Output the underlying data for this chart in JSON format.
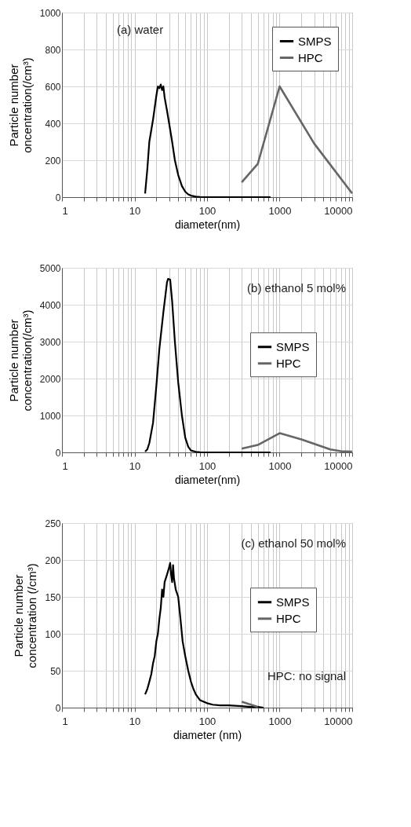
{
  "chart_data": [
    {
      "type": "line",
      "ylabel": "Particle number\noncentration(/cm³)",
      "xlabel": "diameter(nm)",
      "annotations": [
        "(a) water"
      ],
      "log": "x",
      "grid": true,
      "legend": "top right",
      "xlim": [
        1,
        10000
      ],
      "ylim": [
        0,
        1000
      ],
      "yticks": [
        0,
        200,
        400,
        600,
        800,
        1000
      ],
      "xticks": [
        1,
        {
          "value": 2,
          "label": null
        },
        {
          "value": 3,
          "label": null
        },
        {
          "value": 4,
          "label": null
        },
        {
          "value": 5,
          "label": null
        },
        {
          "value": 6,
          "label": null
        },
        {
          "value": 7,
          "label": null
        },
        {
          "value": 8,
          "label": null
        },
        {
          "value": 9,
          "label": null
        },
        10,
        {
          "value": 20,
          "label": null
        },
        {
          "value": 30,
          "label": null
        },
        {
          "value": 40,
          "label": null
        },
        {
          "value": 50,
          "label": null
        },
        {
          "value": 60,
          "label": null
        },
        {
          "value": 70,
          "label": null
        },
        {
          "value": 80,
          "label": null
        },
        {
          "value": 90,
          "label": null
        },
        100,
        {
          "value": 200,
          "label": null
        },
        {
          "value": 300,
          "label": null
        },
        {
          "value": 400,
          "label": null
        },
        {
          "value": 500,
          "label": null
        },
        {
          "value": 600,
          "label": null
        },
        {
          "value": 700,
          "label": null
        },
        {
          "value": 800,
          "label": null
        },
        {
          "value": 900,
          "label": null
        },
        1000,
        {
          "value": 2000,
          "label": null
        },
        {
          "value": 3000,
          "label": null
        },
        {
          "value": 4000,
          "label": null
        },
        {
          "value": 5000,
          "label": null
        },
        {
          "value": 6000,
          "label": null
        },
        {
          "value": 7000,
          "label": null
        },
        {
          "value": 8000,
          "label": null
        },
        {
          "value": 9000,
          "label": null
        },
        10000
      ],
      "series": [
        {
          "name": "SMPS",
          "color": "#000000",
          "x": [
            14,
            15,
            16,
            18,
            20,
            21,
            22,
            23,
            24,
            25,
            26,
            28,
            30,
            33,
            36,
            40,
            45,
            50,
            55,
            60,
            70,
            80,
            100,
            200,
            500,
            750
          ],
          "values": [
            20,
            150,
            300,
            420,
            550,
            600,
            590,
            610,
            580,
            600,
            540,
            470,
            400,
            300,
            200,
            120,
            60,
            30,
            15,
            8,
            3,
            1,
            0,
            0,
            0,
            0
          ]
        },
        {
          "name": "HPC",
          "color": "#666666",
          "x": [
            300,
            500,
            1000,
            3000,
            10000
          ],
          "values": [
            80,
            180,
            600,
            290,
            20
          ]
        }
      ]
    },
    {
      "type": "line",
      "ylabel": "Particle number\nconcentration(/cm³)",
      "xlabel": "diameter(nm)",
      "annotations": [
        "(b) ethanol 5 mol%"
      ],
      "log": "x",
      "grid": true,
      "legend": "right",
      "xlim": [
        1,
        10000
      ],
      "ylim": [
        0,
        5000
      ],
      "yticks": [
        0,
        1000,
        2000,
        3000,
        4000,
        5000
      ],
      "xticks": [
        1,
        {
          "value": 2,
          "label": null
        },
        {
          "value": 3,
          "label": null
        },
        {
          "value": 4,
          "label": null
        },
        {
          "value": 5,
          "label": null
        },
        {
          "value": 6,
          "label": null
        },
        {
          "value": 7,
          "label": null
        },
        {
          "value": 8,
          "label": null
        },
        {
          "value": 9,
          "label": null
        },
        10,
        {
          "value": 20,
          "label": null
        },
        {
          "value": 30,
          "label": null
        },
        {
          "value": 40,
          "label": null
        },
        {
          "value": 50,
          "label": null
        },
        {
          "value": 60,
          "label": null
        },
        {
          "value": 70,
          "label": null
        },
        {
          "value": 80,
          "label": null
        },
        {
          "value": 90,
          "label": null
        },
        100,
        {
          "value": 200,
          "label": null
        },
        {
          "value": 300,
          "label": null
        },
        {
          "value": 400,
          "label": null
        },
        {
          "value": 500,
          "label": null
        },
        {
          "value": 600,
          "label": null
        },
        {
          "value": 700,
          "label": null
        },
        {
          "value": 800,
          "label": null
        },
        {
          "value": 900,
          "label": null
        },
        1000,
        {
          "value": 2000,
          "label": null
        },
        {
          "value": 3000,
          "label": null
        },
        {
          "value": 4000,
          "label": null
        },
        {
          "value": 5000,
          "label": null
        },
        {
          "value": 6000,
          "label": null
        },
        {
          "value": 7000,
          "label": null
        },
        {
          "value": 8000,
          "label": null
        },
        {
          "value": 9000,
          "label": null
        },
        10000
      ],
      "series": [
        {
          "name": "SMPS",
          "color": "#000000",
          "x": [
            14,
            15,
            16,
            18,
            20,
            22,
            25,
            28,
            29,
            31,
            33,
            36,
            40,
            45,
            50,
            55,
            60,
            70,
            80,
            100,
            300,
            750
          ],
          "values": [
            20,
            80,
            250,
            800,
            1800,
            2800,
            3800,
            4600,
            4700,
            4680,
            4100,
            3000,
            1900,
            1000,
            400,
            150,
            50,
            15,
            5,
            0,
            0,
            0
          ]
        },
        {
          "name": "HPC",
          "color": "#666666",
          "x": [
            300,
            500,
            1000,
            2000,
            5000,
            7000,
            10000
          ],
          "values": [
            100,
            200,
            520,
            350,
            80,
            30,
            20
          ]
        }
      ]
    },
    {
      "type": "line",
      "ylabel": "Particle number\nconcentration (/cm³)",
      "xlabel": "diameter (nm)",
      "annotations": [
        "(c) ethanol 50 mol%",
        "HPC: no signal"
      ],
      "log": "x",
      "grid": true,
      "legend": "right",
      "xlim": [
        1,
        10000
      ],
      "ylim": [
        0,
        250
      ],
      "yticks": [
        0,
        50,
        100,
        150,
        200,
        250
      ],
      "xticks": [
        1,
        {
          "value": 2,
          "label": null
        },
        {
          "value": 3,
          "label": null
        },
        {
          "value": 4,
          "label": null
        },
        {
          "value": 5,
          "label": null
        },
        {
          "value": 6,
          "label": null
        },
        {
          "value": 7,
          "label": null
        },
        {
          "value": 8,
          "label": null
        },
        {
          "value": 9,
          "label": null
        },
        10,
        {
          "value": 20,
          "label": null
        },
        {
          "value": 30,
          "label": null
        },
        {
          "value": 40,
          "label": null
        },
        {
          "value": 50,
          "label": null
        },
        {
          "value": 60,
          "label": null
        },
        {
          "value": 70,
          "label": null
        },
        {
          "value": 80,
          "label": null
        },
        {
          "value": 90,
          "label": null
        },
        100,
        {
          "value": 200,
          "label": null
        },
        {
          "value": 300,
          "label": null
        },
        {
          "value": 400,
          "label": null
        },
        {
          "value": 500,
          "label": null
        },
        {
          "value": 600,
          "label": null
        },
        {
          "value": 700,
          "label": null
        },
        {
          "value": 800,
          "label": null
        },
        {
          "value": 900,
          "label": null
        },
        1000,
        {
          "value": 2000,
          "label": null
        },
        {
          "value": 3000,
          "label": null
        },
        {
          "value": 4000,
          "label": null
        },
        {
          "value": 5000,
          "label": null
        },
        {
          "value": 6000,
          "label": null
        },
        {
          "value": 7000,
          "label": null
        },
        {
          "value": 8000,
          "label": null
        },
        {
          "value": 9000,
          "label": null
        },
        10000
      ],
      "series": [
        {
          "name": "SMPS",
          "color": "#000000",
          "x": [
            14,
            15,
            16,
            17,
            18,
            19,
            20,
            21,
            22,
            23,
            24,
            25,
            26,
            28,
            30,
            31,
            32,
            33,
            34,
            35,
            37,
            40,
            43,
            46,
            50,
            55,
            60,
            65,
            70,
            80,
            90,
            100,
            120,
            150,
            200,
            300,
            400,
            500,
            600
          ],
          "values": [
            18,
            25,
            35,
            45,
            60,
            70,
            90,
            100,
            120,
            135,
            160,
            150,
            170,
            180,
            190,
            196,
            180,
            170,
            193,
            175,
            160,
            150,
            120,
            90,
            70,
            50,
            35,
            25,
            18,
            10,
            8,
            6,
            4,
            3,
            3,
            2,
            1,
            1,
            0
          ]
        },
        {
          "name": "HPC",
          "color": "#666666",
          "x": [
            300,
            500
          ],
          "values": [
            8,
            1
          ]
        }
      ]
    }
  ]
}
